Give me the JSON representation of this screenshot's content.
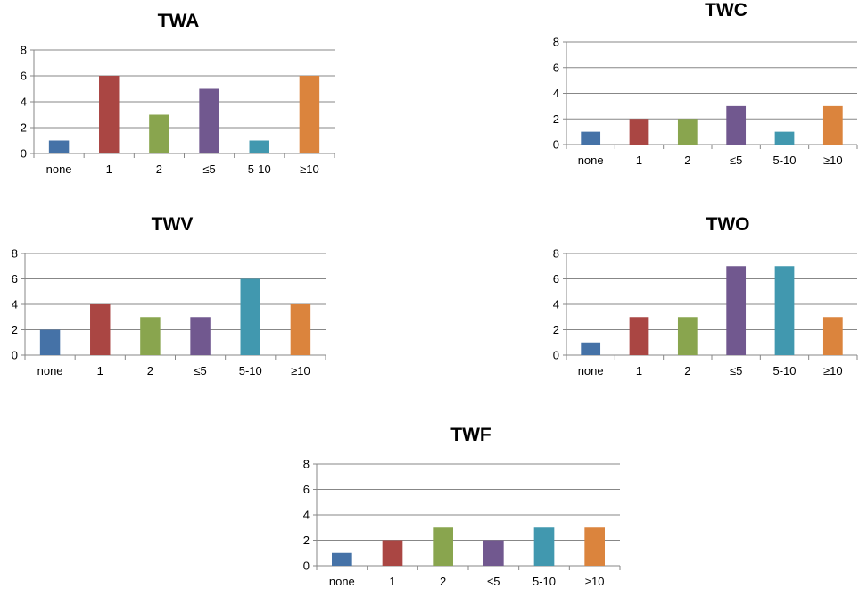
{
  "colors": [
    "#4572A7",
    "#AA4643",
    "#89A54E",
    "#71588F",
    "#4198AF",
    "#DB843D"
  ],
  "chart_data": [
    {
      "type": "bar",
      "title": "TWA",
      "categories": [
        "none",
        "1",
        "2",
        "≤5",
        "5-10",
        "≥10"
      ],
      "values": [
        1,
        6,
        3,
        5,
        1,
        6
      ],
      "yticks": [
        "0",
        "2",
        "4",
        "6",
        "8"
      ],
      "ylim": [
        0,
        8
      ],
      "grid": true,
      "xlabel": "",
      "ylabel": ""
    },
    {
      "type": "bar",
      "title": "TWC",
      "categories": [
        "none",
        "1",
        "2",
        "≤5",
        "5-10",
        "≥10"
      ],
      "values": [
        1,
        2,
        2,
        3,
        1,
        3
      ],
      "yticks": [
        "0",
        "2",
        "4",
        "6",
        "8"
      ],
      "ylim": [
        0,
        8
      ],
      "grid": true,
      "xlabel": "",
      "ylabel": ""
    },
    {
      "type": "bar",
      "title": "TWV",
      "categories": [
        "none",
        "1",
        "2",
        "≤5",
        "5-10",
        "≥10"
      ],
      "values": [
        2,
        4,
        3,
        3,
        6,
        4
      ],
      "yticks": [
        "0",
        "2",
        "4",
        "6",
        "8"
      ],
      "ylim": [
        0,
        8
      ],
      "grid": true,
      "xlabel": "",
      "ylabel": ""
    },
    {
      "type": "bar",
      "title": "TWO",
      "categories": [
        "none",
        "1",
        "2",
        "≤5",
        "5-10",
        "≥10"
      ],
      "values": [
        1,
        3,
        3,
        7,
        7,
        3
      ],
      "yticks": [
        "0",
        "2",
        "4",
        "6",
        "8"
      ],
      "ylim": [
        0,
        8
      ],
      "grid": true,
      "xlabel": "",
      "ylabel": ""
    },
    {
      "type": "bar",
      "title": "TWF",
      "categories": [
        "none",
        "1",
        "2",
        "≤5",
        "5-10",
        "≥10"
      ],
      "values": [
        1,
        2,
        3,
        2,
        3,
        3
      ],
      "yticks": [
        "0",
        "2",
        "4",
        "6",
        "8"
      ],
      "ylim": [
        0,
        8
      ],
      "grid": true,
      "xlabel": "",
      "ylabel": ""
    }
  ]
}
